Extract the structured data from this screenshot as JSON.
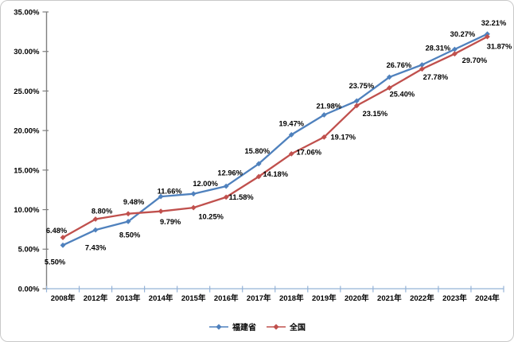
{
  "chart_data": {
    "type": "line",
    "title": "",
    "categories": [
      "2008年",
      "2012年",
      "2013年",
      "2014年",
      "2015年",
      "2016年",
      "2017年",
      "2018年",
      "2019年",
      "2020年",
      "2021年",
      "2022年",
      "2023年",
      "2024年"
    ],
    "series": [
      {
        "name": "福建省",
        "color": "#4F81BD",
        "marker": "diamond",
        "values": [
          5.5,
          7.43,
          8.5,
          11.66,
          12.0,
          12.96,
          15.8,
          19.47,
          21.98,
          23.75,
          26.76,
          28.31,
          30.27,
          32.21
        ],
        "labels": [
          "5.50%",
          "7.43%",
          "8.50%",
          "11.66%",
          "12.00%",
          "12.96%",
          "15.80%",
          "19.47%",
          "21.98%",
          "23.75%",
          "26.76%",
          "28.31%",
          "30.27%",
          "32.21%"
        ],
        "label_offsets": [
          [
            -10,
            21
          ],
          [
            0,
            22
          ],
          [
            2,
            17
          ],
          [
            11,
            -7
          ],
          [
            15,
            -13
          ],
          [
            5,
            -17
          ],
          [
            -2,
            -16
          ],
          [
            0,
            -14
          ],
          [
            6,
            -11
          ],
          [
            6,
            -19
          ],
          [
            12,
            -15
          ],
          [
            20,
            -21
          ],
          [
            10,
            -19
          ],
          [
            8,
            -14
          ]
        ]
      },
      {
        "name": "全国",
        "color": "#C0504D",
        "marker": "diamond",
        "values": [
          6.48,
          8.8,
          9.48,
          9.79,
          10.25,
          11.58,
          14.18,
          17.06,
          19.17,
          23.15,
          25.4,
          27.78,
          29.7,
          31.87
        ],
        "labels": [
          "6.48%",
          "8.80%",
          "9.48%",
          "9.79%",
          "10.25%",
          "11.58%",
          "14.18%",
          "17.06%",
          "19.17%",
          "23.15%",
          "25.40%",
          "27.78%",
          "29.70%",
          "31.87%"
        ],
        "label_offsets": [
          [
            -8,
            -9
          ],
          [
            8,
            -10
          ],
          [
            7,
            -15
          ],
          [
            12,
            13
          ],
          [
            22,
            11
          ],
          [
            19,
            0
          ],
          [
            21,
            -3
          ],
          [
            22,
            -2
          ],
          [
            24,
            0
          ],
          [
            23,
            10
          ],
          [
            16,
            8
          ],
          [
            17,
            10
          ],
          [
            25,
            8
          ],
          [
            15,
            12
          ]
        ]
      }
    ],
    "y_axis": {
      "min": 0,
      "max": 35,
      "step": 5,
      "tick_labels": [
        "0.00%",
        "5.00%",
        "10.00%",
        "15.00%",
        "20.00%",
        "25.00%",
        "30.00%",
        "35.00%"
      ]
    },
    "x_axis": {
      "tick_labels_visible": true
    },
    "grid": false,
    "legend_position": "bottom",
    "colors": {
      "y_axis_line": "#7F7F7F",
      "x_axis_line": "#95B3D7",
      "label_text": "#000000"
    }
  }
}
